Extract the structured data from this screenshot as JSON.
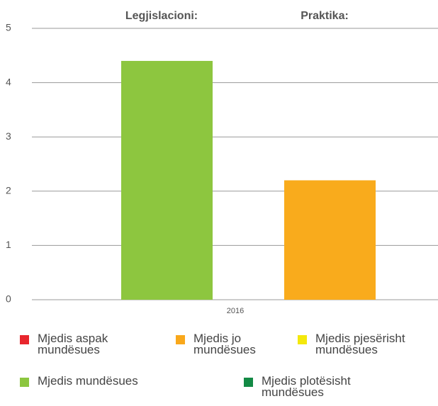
{
  "chart_data": {
    "type": "bar",
    "categories": [
      "2016"
    ],
    "series": [
      {
        "name": "Legjislacioni:",
        "color": "#8dc63f",
        "values": [
          4.4
        ]
      },
      {
        "name": "Praktika:",
        "color": "#f9ab1c",
        "values": [
          2.2
        ]
      }
    ],
    "ylim": [
      0,
      5
    ],
    "yticks": [
      0,
      1,
      2,
      3,
      4,
      5
    ],
    "grid": true,
    "legend": [
      {
        "label": "Mjedis aspak mundësues",
        "color": "#e8262d"
      },
      {
        "label": "Mjedis jo mundësues",
        "color": "#f9a81b"
      },
      {
        "label": "Mjedis pjesërisht mundësues",
        "color": "#f4e80c"
      },
      {
        "label": "Mjedis mundësues",
        "color": "#8cc63f"
      },
      {
        "label": "Mjedis plotësisht mundësues",
        "color": "#138a45"
      }
    ]
  }
}
